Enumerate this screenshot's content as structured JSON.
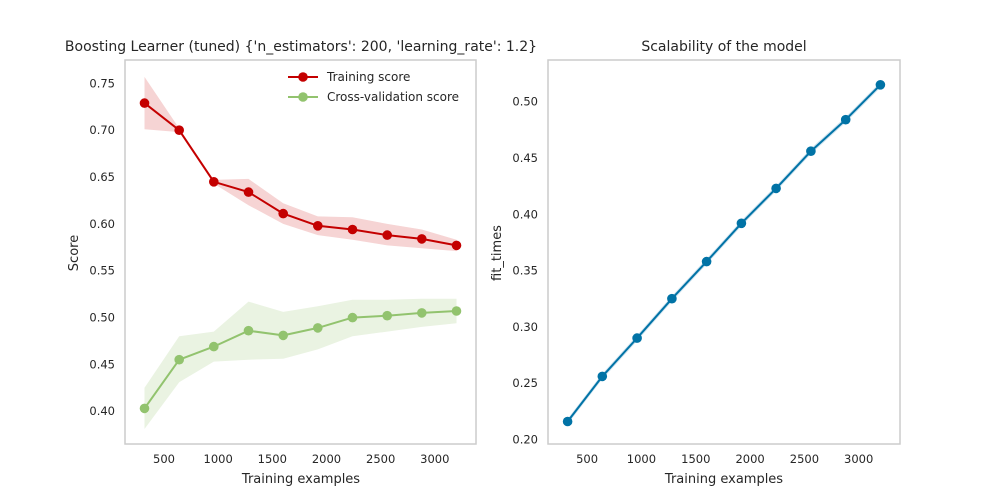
{
  "chart_data": [
    {
      "type": "line",
      "title": "Boosting Learner (tuned) {'n_estimators': 200, 'learning_rate': 1.2}",
      "xlabel": "Training examples",
      "ylabel": "Score",
      "xlim": [
        140,
        3380
      ],
      "ylim": [
        0.365,
        0.775
      ],
      "xticks": [
        500,
        1000,
        1500,
        2000,
        2500,
        3000
      ],
      "yticks": [
        0.4,
        0.45,
        0.5,
        0.55,
        0.6,
        0.65,
        0.7,
        0.75
      ],
      "grid": false,
      "legend_position": "top-right",
      "x": [
        320,
        640,
        960,
        1280,
        1600,
        1920,
        2240,
        2560,
        2880,
        3200
      ],
      "series": [
        {
          "name": "Training score",
          "color": "#c40000",
          "band_color": "#f6d4d4",
          "values": [
            0.729,
            0.7,
            0.645,
            0.634,
            0.611,
            0.598,
            0.594,
            0.588,
            0.584,
            0.577
          ],
          "upper": [
            0.757,
            0.702,
            0.647,
            0.648,
            0.622,
            0.608,
            0.607,
            0.6,
            0.594,
            0.583
          ],
          "lower": [
            0.701,
            0.698,
            0.643,
            0.62,
            0.6,
            0.588,
            0.583,
            0.577,
            0.574,
            0.571
          ]
        },
        {
          "name": "Cross-validation score",
          "color": "#92c36e",
          "band_color": "#eaf3e2",
          "values": [
            0.403,
            0.455,
            0.469,
            0.486,
            0.481,
            0.489,
            0.5,
            0.502,
            0.505,
            0.507
          ],
          "upper": [
            0.425,
            0.48,
            0.485,
            0.517,
            0.506,
            0.512,
            0.519,
            0.519,
            0.52,
            0.52
          ],
          "lower": [
            0.381,
            0.431,
            0.453,
            0.455,
            0.456,
            0.466,
            0.48,
            0.485,
            0.49,
            0.494
          ]
        }
      ]
    },
    {
      "type": "line",
      "title": "Scalability of the model",
      "xlabel": "Training examples",
      "ylabel": "fit_times",
      "xlim": [
        140,
        3380
      ],
      "ylim": [
        0.196,
        0.537
      ],
      "xticks": [
        500,
        1000,
        1500,
        2000,
        2500,
        3000
      ],
      "yticks": [
        0.2,
        0.25,
        0.3,
        0.35,
        0.4,
        0.45,
        0.5
      ],
      "grid": false,
      "x": [
        320,
        640,
        960,
        1280,
        1600,
        1920,
        2240,
        2560,
        2880,
        3200
      ],
      "series": [
        {
          "color": "#0173a6",
          "band_color": "#cfe3ef",
          "values": [
            0.216,
            0.256,
            0.29,
            0.325,
            0.358,
            0.392,
            0.423,
            0.456,
            0.484,
            0.515
          ]
        }
      ]
    }
  ]
}
